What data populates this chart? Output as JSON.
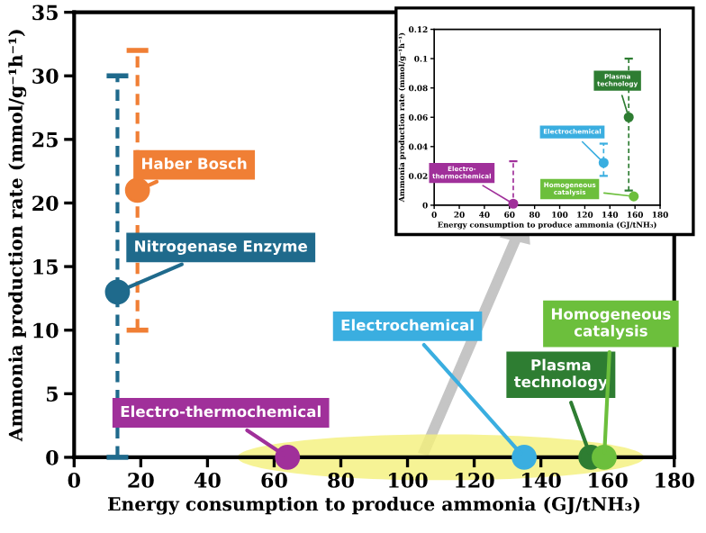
{
  "chart_data": [
    {
      "type": "scatter",
      "xlabel": "Energy consumption to produce ammonia (GJ/tNH₃)",
      "ylabel": "Ammonia production rate (mmol/g⁻¹h⁻¹)",
      "xlim": [
        0,
        180
      ],
      "xticks": [
        0,
        20,
        40,
        60,
        80,
        100,
        120,
        140,
        160,
        180
      ],
      "ylim": [
        0,
        35
      ],
      "yticks": [
        0,
        5,
        10,
        15,
        20,
        25,
        30,
        35
      ],
      "marker": "circle",
      "grid": false,
      "legend": false,
      "series": [
        {
          "name": "Haber Bosch",
          "color": "#f07f35",
          "x": [
            19
          ],
          "values": [
            21
          ],
          "errors": [
            [
              10,
              32
            ]
          ]
        },
        {
          "name": "Nitrogenase Enzyme",
          "color": "#1f6a8c",
          "x": [
            13
          ],
          "values": [
            13
          ],
          "errors": [
            [
              0,
              30
            ]
          ]
        },
        {
          "name": "Electrochemical",
          "color": "#3aaee0",
          "x": [
            135
          ],
          "values": [
            0
          ]
        },
        {
          "name": "Electro-thermochemical",
          "color": "#a0309a",
          "x": [
            64
          ],
          "values": [
            0
          ]
        },
        {
          "name": "Plasma\ntechnology",
          "color": "#2e7d32",
          "x": [
            155
          ],
          "values": [
            0
          ]
        },
        {
          "name": "Homogeneous\ncatalysis",
          "color": "#6cbf3c",
          "x": [
            159
          ],
          "values": [
            0
          ]
        }
      ]
    },
    {
      "type": "scatter",
      "xlabel": "Energy consumption to produce ammonia (GJ/tNH₃)",
      "ylabel": "Ammonia production rate (mmol/g⁻¹h⁻¹)",
      "xlim": [
        0,
        180
      ],
      "xticks": [
        0,
        20,
        40,
        60,
        80,
        100,
        120,
        140,
        160,
        180
      ],
      "ylim": [
        0,
        0.12
      ],
      "yticks": [
        0,
        0.02,
        0.04,
        0.06,
        0.08,
        {
          "value": 0.1,
          "label": "0.1"
        },
        0.12
      ],
      "marker": "circle",
      "grid": false,
      "legend": false,
      "series": [
        {
          "name": "Electro-\nthermochemical",
          "color": "#a0309a",
          "x": [
            63
          ],
          "values": [
            0.001
          ],
          "errors": [
            [
              0,
              0.03
            ]
          ]
        },
        {
          "name": "Electrochemical",
          "color": "#3aaee0",
          "x": [
            135
          ],
          "values": [
            0.029
          ],
          "errors": [
            [
              0.02,
              0.042
            ]
          ]
        },
        {
          "name": "Plasma\ntechnology",
          "color": "#2e7d32",
          "x": [
            155
          ],
          "values": [
            0.06
          ],
          "errors": [
            [
              0.01,
              0.1
            ]
          ]
        },
        {
          "name": "Homogeneous\ncatalysis",
          "color": "#6cbf3c",
          "x": [
            159
          ],
          "values": [
            0.006
          ]
        }
      ]
    }
  ]
}
